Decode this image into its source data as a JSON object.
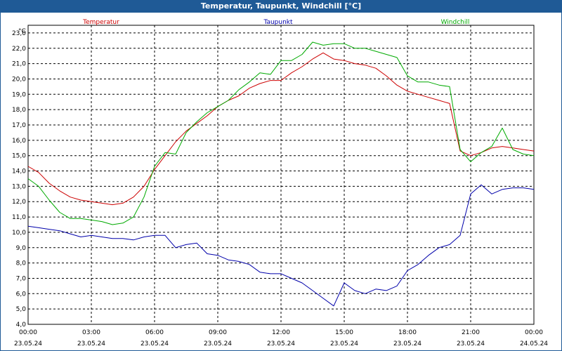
{
  "window": {
    "title": "Temperatur, Taupunkt, Windchill [°C]"
  },
  "colors": {
    "title_bar": "#1f5a96",
    "title_text": "#ffffff",
    "grid": "#000000",
    "axis_text": "#000000",
    "temperatur": "#cc0000",
    "taupunkt": "#0000aa",
    "windchill": "#00aa00"
  },
  "chart_data": {
    "type": "line",
    "title": "Temperatur, Taupunkt, Windchill [°C]",
    "ylabel": "°C",
    "xlabel": "",
    "ylim": [
      4.0,
      23.5
    ],
    "y_ticks": [
      "4,0",
      "5,0",
      "6,0",
      "7,0",
      "8,0",
      "9,0",
      "10,0",
      "11,0",
      "12,0",
      "13,0",
      "14,0",
      "15,0",
      "16,0",
      "17,0",
      "18,0",
      "19,0",
      "20,0",
      "21,0",
      "22,0",
      "23,0"
    ],
    "x_ticks": [
      {
        "time": "00:00",
        "date": "23.05.24"
      },
      {
        "time": "03:00",
        "date": "23.05.24"
      },
      {
        "time": "06:00",
        "date": "23.05.24"
      },
      {
        "time": "09:00",
        "date": "23.05.24"
      },
      {
        "time": "12:00",
        "date": "23.05.24"
      },
      {
        "time": "15:00",
        "date": "23.05.24"
      },
      {
        "time": "18:00",
        "date": "23.05.24"
      },
      {
        "time": "21:00",
        "date": "23.05.24"
      },
      {
        "time": "00:00",
        "date": "24.05.24"
      }
    ],
    "x_unit": "hours since 23.05.24 00:00",
    "xlim": [
      0,
      24
    ],
    "grid": true,
    "legend_placement": "top",
    "series": [
      {
        "name": "Temperatur",
        "color": "#cc0000",
        "x": [
          0,
          0.5,
          1,
          1.5,
          2,
          2.5,
          3,
          3.5,
          4,
          4.5,
          5,
          5.5,
          6,
          6.5,
          7,
          7.5,
          8,
          8.5,
          9,
          9.5,
          10,
          10.5,
          11,
          11.5,
          12,
          12.5,
          13,
          13.5,
          14,
          14.5,
          15,
          15.5,
          16,
          16.5,
          17,
          17.5,
          18,
          18.5,
          19,
          19.5,
          20,
          20.5,
          21,
          21.5,
          22,
          22.5,
          23,
          23.5,
          24
        ],
        "values": [
          14.3,
          13.9,
          13.2,
          12.7,
          12.3,
          12.1,
          12.0,
          11.9,
          11.8,
          11.9,
          12.3,
          13.0,
          14.1,
          15.0,
          15.9,
          16.6,
          17.1,
          17.6,
          18.2,
          18.6,
          18.9,
          19.4,
          19.7,
          19.9,
          19.9,
          20.4,
          20.8,
          21.3,
          21.7,
          21.3,
          21.2,
          21.0,
          20.9,
          20.7,
          20.2,
          19.6,
          19.2,
          19.0,
          18.8,
          18.6,
          18.4,
          15.3,
          15.0,
          15.2,
          15.5,
          15.6,
          15.5,
          15.4,
          15.3
        ]
      },
      {
        "name": "Taupunkt",
        "color": "#0000aa",
        "x": [
          0,
          0.5,
          1,
          1.5,
          2,
          2.5,
          3,
          3.5,
          4,
          4.5,
          5,
          5.5,
          6,
          6.5,
          7,
          7.5,
          8,
          8.5,
          9,
          9.5,
          10,
          10.5,
          11,
          11.5,
          12,
          12.5,
          13,
          13.5,
          14,
          14.5,
          15,
          15.5,
          16,
          16.5,
          17,
          17.5,
          18,
          18.5,
          19,
          19.5,
          20,
          20.5,
          21,
          21.5,
          22,
          22.5,
          23,
          23.5,
          24
        ],
        "values": [
          10.4,
          10.3,
          10.2,
          10.1,
          9.9,
          9.7,
          9.8,
          9.7,
          9.6,
          9.6,
          9.5,
          9.7,
          9.8,
          9.8,
          9.0,
          9.2,
          9.3,
          8.6,
          8.5,
          8.2,
          8.1,
          7.9,
          7.4,
          7.3,
          7.3,
          7.0,
          6.7,
          6.2,
          5.7,
          5.2,
          6.7,
          6.2,
          6.0,
          6.3,
          6.2,
          6.5,
          7.5,
          7.9,
          8.5,
          9.0,
          9.2,
          9.8,
          12.5,
          13.1,
          12.5,
          12.8,
          12.9,
          12.9,
          12.8
        ]
      },
      {
        "name": "Windchill",
        "color": "#00aa00",
        "x": [
          0,
          0.5,
          1,
          1.5,
          2,
          2.5,
          3,
          3.5,
          4,
          4.5,
          5,
          5.5,
          6,
          6.5,
          7,
          7.5,
          8,
          8.5,
          9,
          9.5,
          10,
          10.5,
          11,
          11.5,
          12,
          12.5,
          13,
          13.5,
          14,
          14.5,
          15,
          15.5,
          16,
          16.5,
          17,
          17.5,
          18,
          18.5,
          19,
          19.5,
          20,
          20.5,
          21,
          21.5,
          22,
          22.5,
          23,
          23.5,
          24
        ],
        "values": [
          13.5,
          13.0,
          12.1,
          11.3,
          10.9,
          10.9,
          10.8,
          10.7,
          10.5,
          10.6,
          11.0,
          12.3,
          14.3,
          15.2,
          15.1,
          16.5,
          17.2,
          17.8,
          18.2,
          18.6,
          19.3,
          19.8,
          20.4,
          20.3,
          21.2,
          21.2,
          21.6,
          22.4,
          22.2,
          22.3,
          22.3,
          22.0,
          22.0,
          21.8,
          21.6,
          21.4,
          20.2,
          19.8,
          19.8,
          19.6,
          19.5,
          15.4,
          14.6,
          15.2,
          15.6,
          16.8,
          15.4,
          15.1,
          15.0
        ]
      }
    ]
  }
}
